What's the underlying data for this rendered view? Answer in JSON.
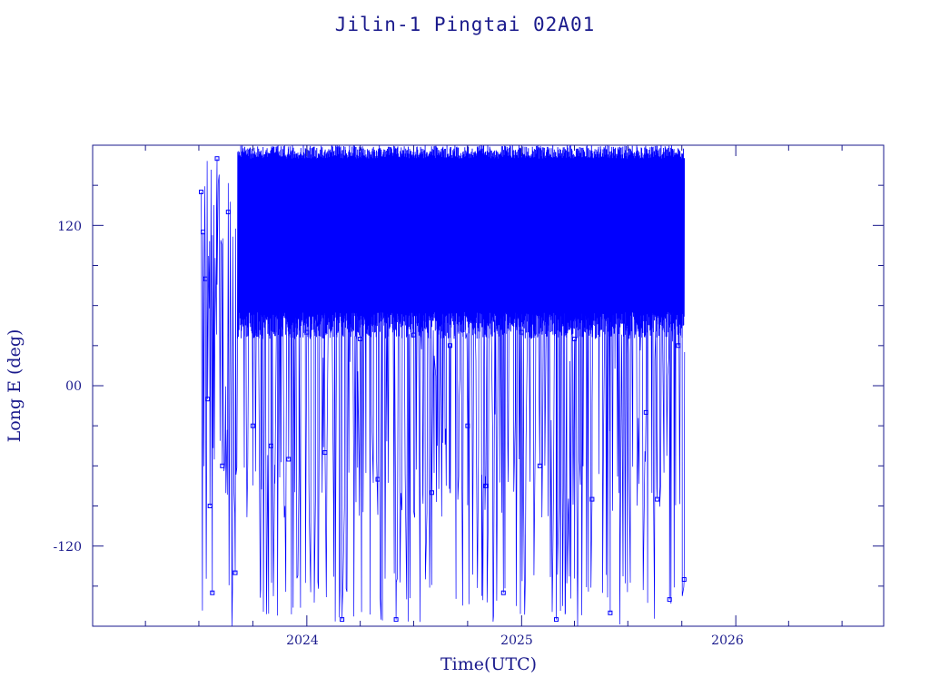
{
  "chart_data": {
    "type": "scatter",
    "title": "Jilin-1 Pingtai 02A01",
    "xlabel": "Time(UTC)",
    "ylabel": "Long E (deg)",
    "x_ticks": [
      "2024",
      "2025",
      "2026"
    ],
    "y_ticks": [
      "120",
      "00",
      "-120"
    ],
    "xlim": [
      "2023-01-01",
      "2026-09-10"
    ],
    "ylim": [
      -180,
      180
    ],
    "grid": false,
    "legend": "none",
    "style": "connected points (line + markers)",
    "color": "#0000ff",
    "data_range": {
      "x_start": "2023-07-05",
      "x_end": "2025-10-05",
      "y_min": -180,
      "y_max": 180
    },
    "observed_points": [
      {
        "x": "2023-07-05",
        "y": 145
      },
      {
        "x": "2023-07-08",
        "y": 115
      },
      {
        "x": "2023-07-12",
        "y": 80
      },
      {
        "x": "2023-07-16",
        "y": -10
      },
      {
        "x": "2023-07-20",
        "y": -90
      },
      {
        "x": "2023-07-24",
        "y": -155
      },
      {
        "x": "2023-08-01",
        "y": 170
      },
      {
        "x": "2023-08-10",
        "y": -60
      },
      {
        "x": "2023-08-20",
        "y": 130
      },
      {
        "x": "2023-09-01",
        "y": -140
      },
      {
        "x": "2023-09-15",
        "y": 95
      },
      {
        "x": "2023-10-01",
        "y": -30
      },
      {
        "x": "2023-10-15",
        "y": 70
      },
      {
        "x": "2023-11-01",
        "y": -45
      },
      {
        "x": "2023-12-01",
        "y": -55
      },
      {
        "x": "2024-01-01",
        "y": 40
      },
      {
        "x": "2024-02-01",
        "y": -50
      },
      {
        "x": "2024-03-01",
        "y": -175
      },
      {
        "x": "2024-04-01",
        "y": 35
      },
      {
        "x": "2024-05-01",
        "y": -70
      },
      {
        "x": "2024-06-01",
        "y": -175
      },
      {
        "x": "2024-07-01",
        "y": 38
      },
      {
        "x": "2024-08-01",
        "y": -80
      },
      {
        "x": "2024-09-01",
        "y": 30
      },
      {
        "x": "2024-10-01",
        "y": -30
      },
      {
        "x": "2024-11-01",
        "y": -75
      },
      {
        "x": "2024-12-01",
        "y": -155
      },
      {
        "x": "2025-01-01",
        "y": 40
      },
      {
        "x": "2025-02-01",
        "y": -60
      },
      {
        "x": "2025-03-01",
        "y": -175
      },
      {
        "x": "2025-04-01",
        "y": 35
      },
      {
        "x": "2025-05-01",
        "y": -85
      },
      {
        "x": "2025-06-01",
        "y": -170
      },
      {
        "x": "2025-07-01",
        "y": 45
      },
      {
        "x": "2025-08-01",
        "y": -20
      },
      {
        "x": "2025-08-20",
        "y": -85
      },
      {
        "x": "2025-09-10",
        "y": -160
      },
      {
        "x": "2025-09-25",
        "y": 30
      },
      {
        "x": "2025-10-05",
        "y": -145
      }
    ]
  }
}
